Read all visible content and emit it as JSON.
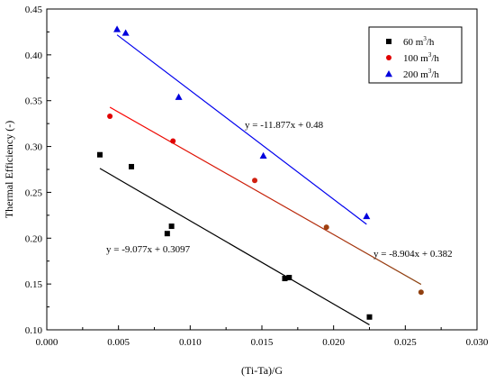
{
  "chart_data": {
    "type": "scatter",
    "xlabel": "(Ti-Ta)/G",
    "ylabel": "Thermal Efficiency (-)",
    "xlim": [
      0.0,
      0.03
    ],
    "ylim": [
      0.1,
      0.45
    ],
    "x_ticks": [
      0.0,
      0.005,
      0.01,
      0.015,
      0.02,
      0.025,
      0.03
    ],
    "x_tick_labels": [
      "0.000",
      "0.005",
      "0.010",
      "0.015",
      "0.020",
      "0.025",
      "0.030"
    ],
    "y_ticks": [
      0.1,
      0.15,
      0.2,
      0.25,
      0.3,
      0.35,
      0.4,
      0.45
    ],
    "y_tick_labels": [
      "0.10",
      "0.15",
      "0.20",
      "0.25",
      "0.30",
      "0.35",
      "0.40",
      "0.45"
    ],
    "grid": false,
    "legend_position": "top-right",
    "series": [
      {
        "name": "60 m3/h",
        "legend_base": "60 m",
        "legend_sup": "3",
        "legend_tail": "/h",
        "marker": "square",
        "color": "#000000",
        "points": [
          [
            0.0037,
            0.291
          ],
          [
            0.0059,
            0.278
          ],
          [
            0.0084,
            0.205
          ],
          [
            0.0087,
            0.213
          ],
          [
            0.0166,
            0.156
          ],
          [
            0.0169,
            0.157
          ],
          [
            0.0225,
            0.114
          ]
        ],
        "fit": {
          "slope": -9.077,
          "intercept": 0.3097,
          "x_range": [
            0.0037,
            0.0225
          ],
          "color": "#000000",
          "label": "y = -9.077x + 0.3097"
        }
      },
      {
        "name": "100 m3/h",
        "legend_base": "100 m",
        "legend_sup": "3",
        "legend_tail": "/h",
        "marker": "circle",
        "color": "#e00000",
        "points": [
          [
            0.0044,
            0.333
          ],
          [
            0.0088,
            0.306
          ],
          [
            0.0145,
            0.263
          ],
          [
            0.0195,
            0.212
          ],
          [
            0.0261,
            0.141
          ]
        ],
        "point_colors": [
          "#e00000",
          "#e00000",
          "#d02010",
          "#a04010",
          "#904010"
        ],
        "fit": {
          "slope": -8.904,
          "intercept": 0.382,
          "x_range": [
            0.0044,
            0.0261
          ],
          "gradient": [
            "#ff0000",
            "#8b4513"
          ],
          "label": "y = -8.904x + 0.382"
        }
      },
      {
        "name": "200 m3/h",
        "legend_base": "200 m",
        "legend_sup": "3",
        "legend_tail": "/h",
        "marker": "triangle",
        "color": "#0000dd",
        "points": [
          [
            0.0049,
            0.428
          ],
          [
            0.0055,
            0.424
          ],
          [
            0.0092,
            0.354
          ],
          [
            0.0151,
            0.29
          ],
          [
            0.0223,
            0.224
          ]
        ],
        "fit": {
          "slope": -11.877,
          "intercept": 0.48,
          "x_range": [
            0.0049,
            0.0223
          ],
          "color": "#0000ee",
          "label": "y = -11.877x + 0.48"
        }
      }
    ]
  }
}
